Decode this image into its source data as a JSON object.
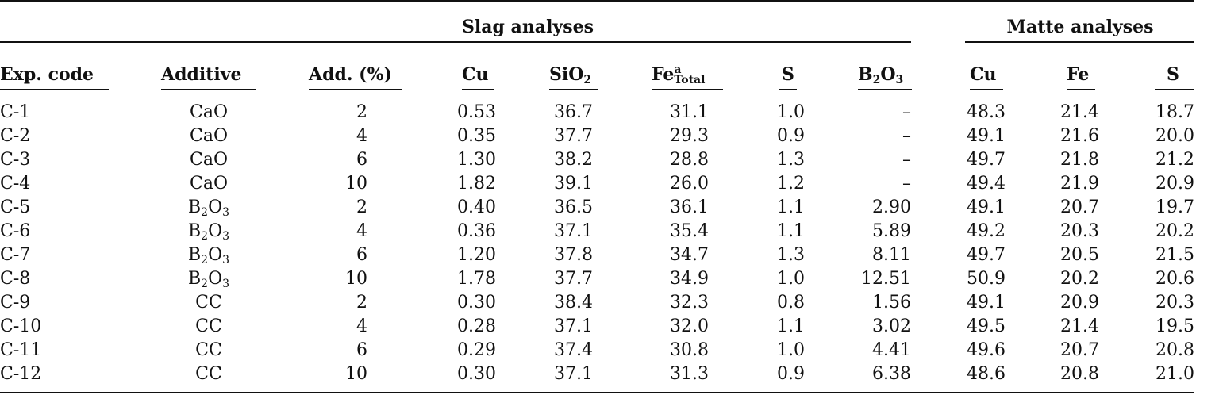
{
  "table": {
    "group_headers": {
      "slag": "Slag analyses",
      "matte": "Matte analyses"
    },
    "columns": [
      {
        "id": "exp",
        "label": "Exp. code"
      },
      {
        "id": "add",
        "label": "Additive"
      },
      {
        "id": "pct",
        "label": "Add. (%)"
      },
      {
        "id": "cu",
        "label": "Cu"
      },
      {
        "id": "sio2",
        "label": "SiO",
        "sub": "2"
      },
      {
        "id": "fe",
        "label": "Fe",
        "sup": "a",
        "sub": "Total"
      },
      {
        "id": "s",
        "label": "S"
      },
      {
        "id": "b2o3",
        "label": "B",
        "sub": "2",
        "tail": "O",
        "sub2": "3"
      },
      {
        "id": "mcu",
        "label": "Cu"
      },
      {
        "id": "mfe",
        "label": "Fe"
      },
      {
        "id": "ms",
        "label": "S"
      }
    ],
    "rows": [
      [
        "C-1",
        "CaO",
        "2",
        "0.53",
        "36.7",
        "31.1",
        "1.0",
        "–",
        "48.3",
        "21.4",
        "18.7"
      ],
      [
        "C-2",
        "CaO",
        "4",
        "0.35",
        "37.7",
        "29.3",
        "0.9",
        "–",
        "49.1",
        "21.6",
        "20.0"
      ],
      [
        "C-3",
        "CaO",
        "6",
        "1.30",
        "38.2",
        "28.8",
        "1.3",
        "–",
        "49.7",
        "21.8",
        "21.2"
      ],
      [
        "C-4",
        "CaO",
        "10",
        "1.82",
        "39.1",
        "26.0",
        "1.2",
        "–",
        "49.4",
        "21.9",
        "20.9"
      ],
      [
        "C-5",
        "B2O3",
        "2",
        "0.40",
        "36.5",
        "36.1",
        "1.1",
        "2.90",
        "49.1",
        "20.7",
        "19.7"
      ],
      [
        "C-6",
        "B2O3",
        "4",
        "0.36",
        "37.1",
        "35.4",
        "1.1",
        "5.89",
        "49.2",
        "20.3",
        "20.2"
      ],
      [
        "C-7",
        "B2O3",
        "6",
        "1.20",
        "37.8",
        "34.7",
        "1.3",
        "8.11",
        "49.7",
        "20.5",
        "21.5"
      ],
      [
        "C-8",
        "B2O3",
        "10",
        "1.78",
        "37.7",
        "34.9",
        "1.0",
        "12.51",
        "50.9",
        "20.2",
        "20.6"
      ],
      [
        "C-9",
        "CC",
        "2",
        "0.30",
        "38.4",
        "32.3",
        "0.8",
        "1.56",
        "49.1",
        "20.9",
        "20.3"
      ],
      [
        "C-10",
        "CC",
        "4",
        "0.28",
        "37.1",
        "32.0",
        "1.1",
        "3.02",
        "49.5",
        "21.4",
        "19.5"
      ],
      [
        "C-11",
        "CC",
        "6",
        "0.29",
        "37.4",
        "30.8",
        "1.0",
        "4.41",
        "49.6",
        "20.7",
        "20.8"
      ],
      [
        "C-12",
        "CC",
        "10",
        "0.30",
        "37.1",
        "31.3",
        "0.9",
        "6.38",
        "48.6",
        "20.8",
        "21.0"
      ]
    ]
  }
}
